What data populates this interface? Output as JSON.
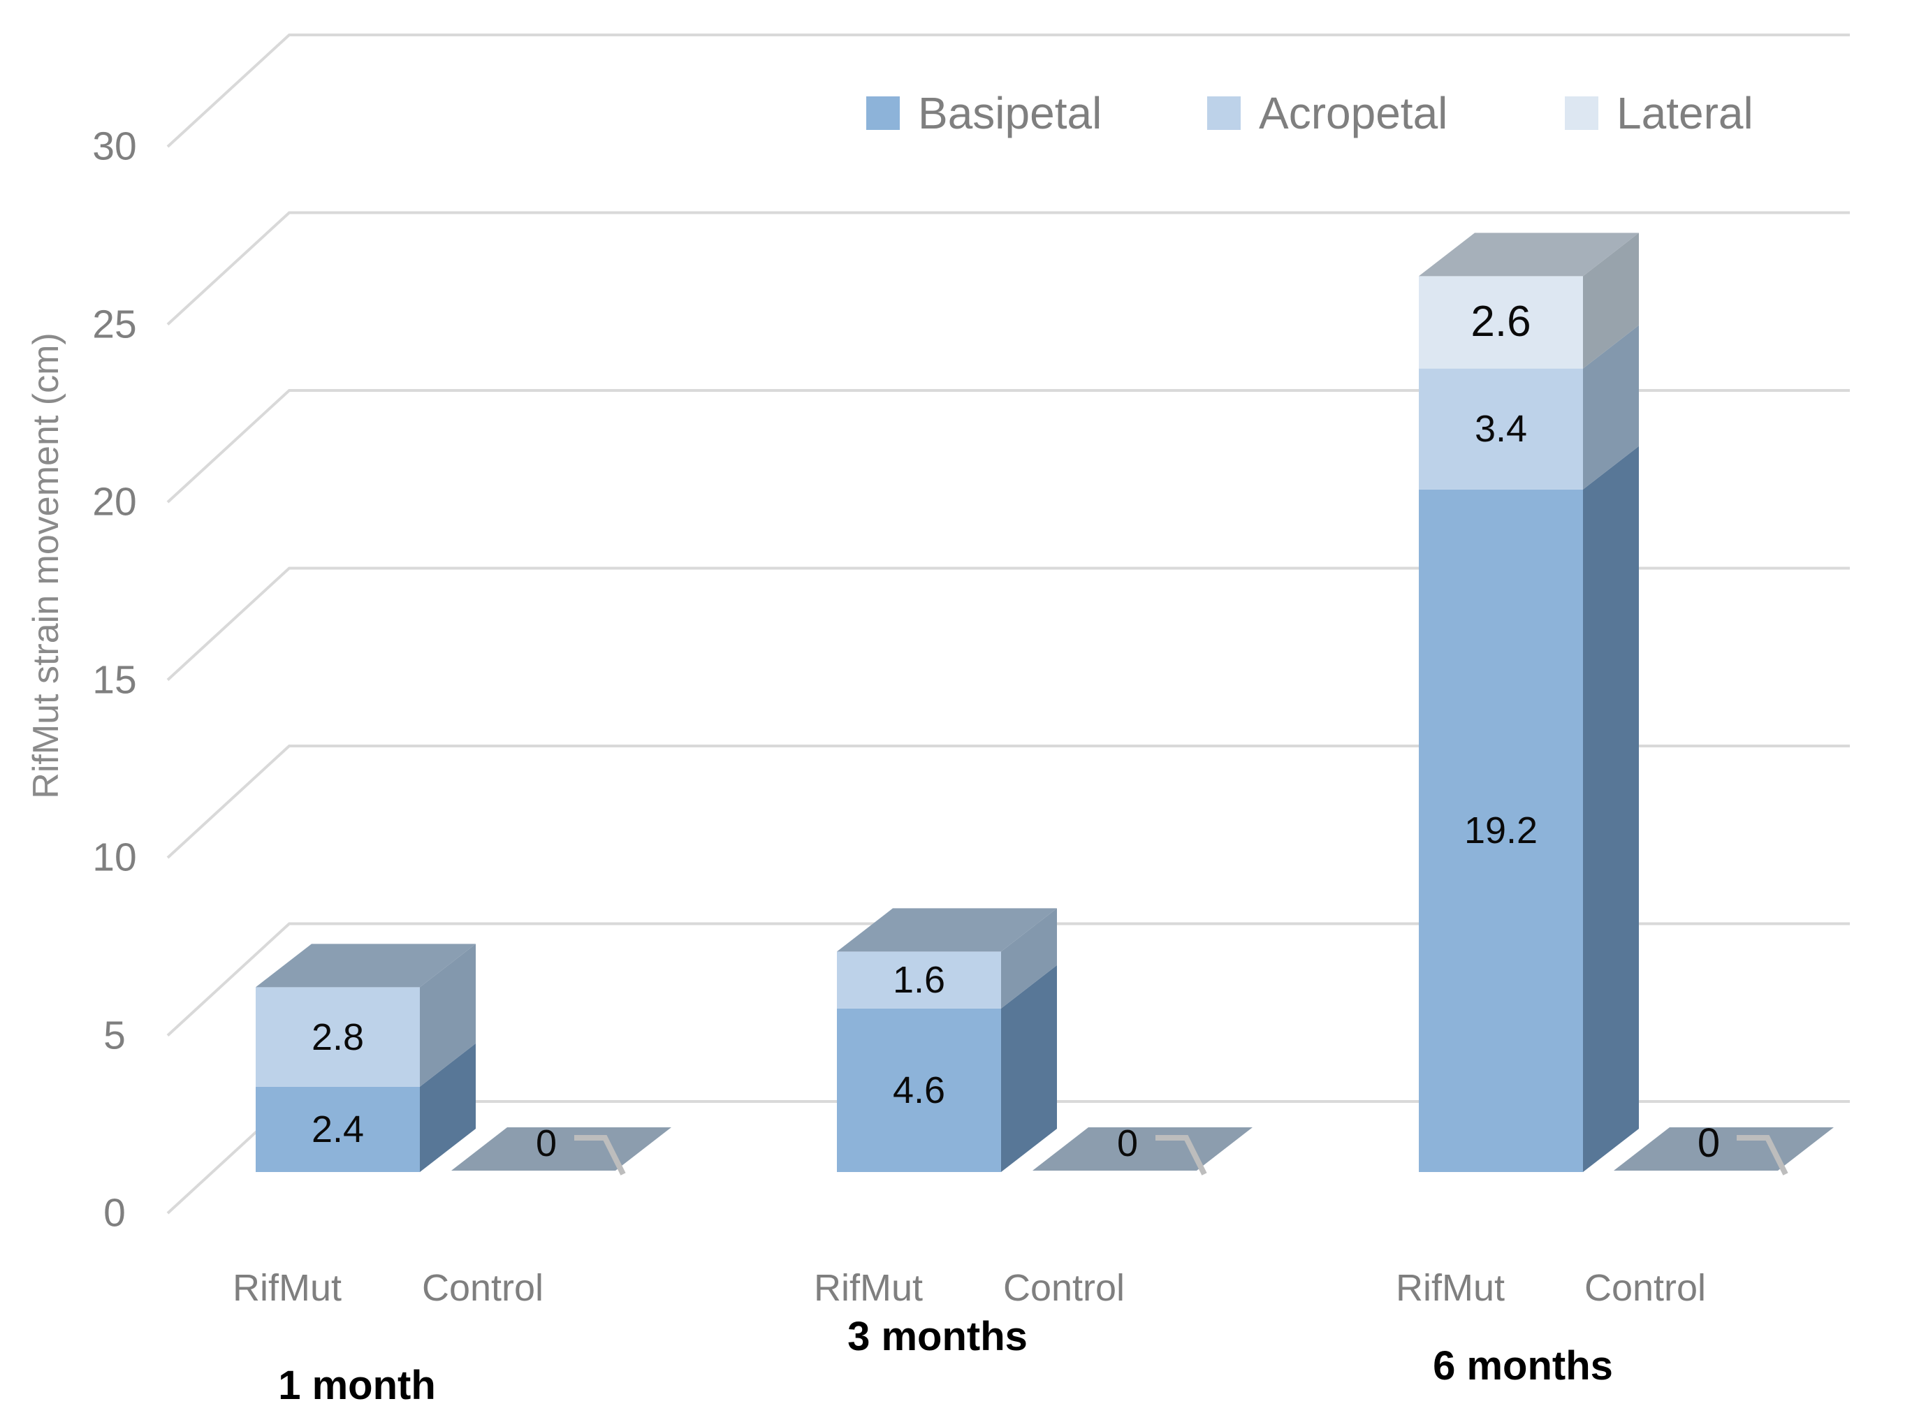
{
  "chart_data": {
    "type": "bar",
    "style": "3d-stacked-column",
    "title": "",
    "ylabel": "RifMut strain movement (cm)",
    "xlabel": "",
    "ylim": [
      0,
      30
    ],
    "yticks": [
      0,
      5,
      10,
      15,
      20,
      25,
      30
    ],
    "grid": true,
    "legend_position": "top-right",
    "legend": [
      "Basipetal",
      "Acropetal",
      "Lateral"
    ],
    "categories": [
      "1 month",
      "3 months",
      "6 months"
    ],
    "bar_sublabels": [
      "RifMut",
      "Control"
    ],
    "series": [
      {
        "name": "Basipetal",
        "rifmut_values": [
          2.4,
          4.6,
          19.2
        ],
        "control_values": [
          0,
          0,
          0
        ]
      },
      {
        "name": "Acropetal",
        "rifmut_values": [
          2.8,
          1.6,
          3.4
        ],
        "control_values": [
          0,
          0,
          0
        ]
      },
      {
        "name": "Lateral",
        "rifmut_values": [
          0,
          0,
          2.6
        ],
        "control_values": [
          0,
          0,
          0
        ]
      }
    ],
    "control_zero_label": "0"
  },
  "colors": {
    "basipetal_front": "#8DB3D9",
    "basipetal_side": "#587797",
    "acropetal_front": "#BDD2E9",
    "acropetal_side": "#8398AD",
    "lateral_front": "#DDE7F2",
    "lateral_side": "#98A3AC",
    "top_face_blue": "#8A9EB2",
    "top_face_gray": "#A6B0BA",
    "control_pad": "#8C9DAE",
    "gridline": "#D9D9D9",
    "leader": "#BDBDBD",
    "axis_text": "#7F7F7F",
    "data_label": "#0A0A0A"
  }
}
